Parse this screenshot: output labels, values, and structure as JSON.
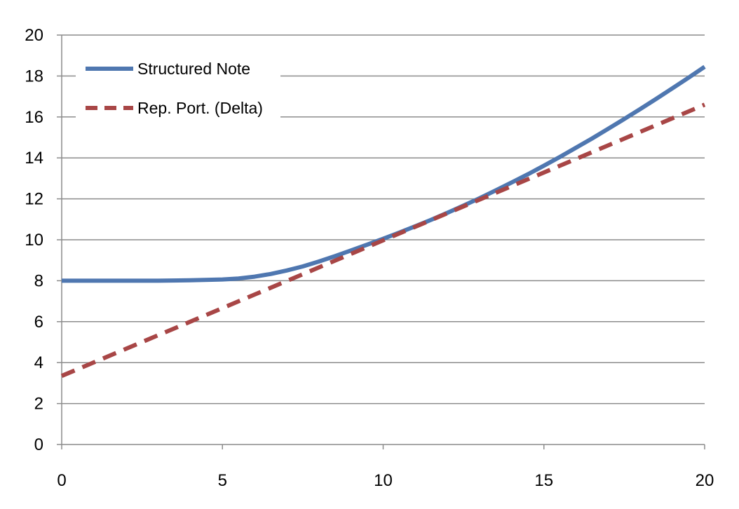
{
  "chart_data": {
    "type": "line",
    "title": "",
    "xlabel": "",
    "ylabel": "",
    "xlim": [
      0,
      20
    ],
    "ylim": [
      0,
      20
    ],
    "x_ticks": [
      0,
      5,
      10,
      15,
      20
    ],
    "y_ticks": [
      0,
      2,
      4,
      6,
      8,
      10,
      12,
      14,
      16,
      18,
      20
    ],
    "x_tick_labels": [
      "0",
      "5",
      "10",
      "15",
      "20"
    ],
    "y_tick_labels": [
      "0",
      "2",
      "4",
      "6",
      "8",
      "10",
      "12",
      "14",
      "16",
      "18",
      "20"
    ],
    "grid": "horizontal",
    "legend_position": "top-left",
    "series": [
      {
        "name": "Structured Note",
        "color": "#4f77b0",
        "style": "solid",
        "x": [
          0,
          1,
          2,
          3,
          4,
          5,
          5.5,
          6,
          6.5,
          7,
          7.5,
          8,
          8.5,
          9,
          9.5,
          10,
          10.5,
          11,
          11.5,
          12,
          12.5,
          13,
          13.5,
          14,
          14.5,
          15,
          15.5,
          16,
          16.5,
          17,
          17.5,
          18,
          18.5,
          19,
          19.5,
          20
        ],
        "y": [
          8.0,
          8.0,
          8.0,
          8.0,
          8.02,
          8.06,
          8.11,
          8.2,
          8.33,
          8.5,
          8.7,
          8.94,
          9.2,
          9.48,
          9.76,
          10.05,
          10.35,
          10.66,
          10.98,
          11.32,
          11.67,
          12.03,
          12.41,
          12.8,
          13.2,
          13.62,
          14.05,
          14.5,
          14.95,
          15.42,
          15.9,
          16.39,
          16.89,
          17.4,
          17.92,
          18.45
        ]
      },
      {
        "name": "Rep. Port. (Delta)",
        "color": "#a84646",
        "style": "dashed",
        "x": [
          0,
          20
        ],
        "y": [
          3.35,
          16.6
        ]
      }
    ]
  },
  "legend": {
    "items": [
      {
        "label": "Structured Note"
      },
      {
        "label": "Rep. Port. (Delta)"
      }
    ]
  }
}
